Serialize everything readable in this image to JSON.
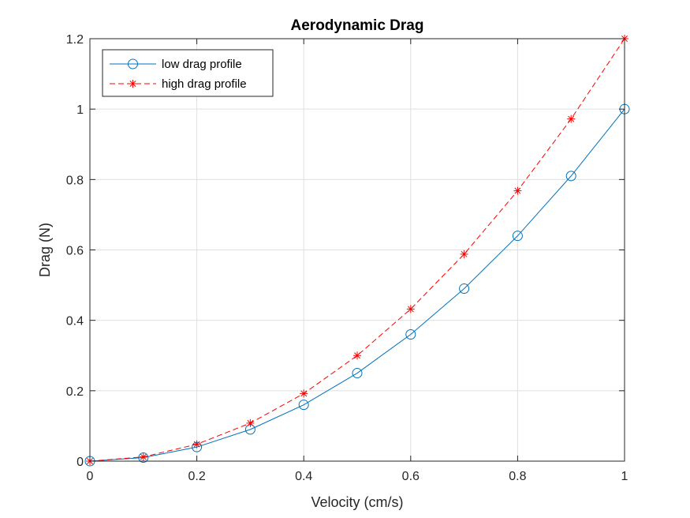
{
  "chart_data": {
    "type": "line",
    "title": "Aerodynamic Drag",
    "xlabel": "Velocity (cm/s)",
    "ylabel": "Drag (N)",
    "xlim": [
      0,
      1
    ],
    "ylim": [
      0,
      1.2
    ],
    "xticks": [
      0,
      0.2,
      0.4,
      0.6,
      0.8,
      1
    ],
    "xtick_labels": [
      "0",
      "0.2",
      "0.4",
      "0.6",
      "0.8",
      "1"
    ],
    "yticks": [
      0,
      0.2,
      0.4,
      0.6,
      0.8,
      1,
      1.2
    ],
    "ytick_labels": [
      "0",
      "0.2",
      "0.4",
      "0.6",
      "0.8",
      "1",
      "1.2"
    ],
    "grid": true,
    "legend_position": "top-left",
    "x": [
      0,
      0.1,
      0.2,
      0.3,
      0.4,
      0.5,
      0.6,
      0.7,
      0.8,
      0.9,
      1.0
    ],
    "series": [
      {
        "name": "low drag profile",
        "values": [
          0,
          0.01,
          0.04,
          0.09,
          0.16,
          0.25,
          0.36,
          0.49,
          0.64,
          0.81,
          1.0
        ],
        "color": "#0072bd",
        "line_style": "solid",
        "marker": "circle"
      },
      {
        "name": "high drag profile",
        "values": [
          0,
          0.012,
          0.048,
          0.108,
          0.192,
          0.3,
          0.432,
          0.588,
          0.768,
          0.972,
          1.2
        ],
        "color": "#ff0000",
        "line_style": "dashed",
        "marker": "asterisk"
      }
    ]
  }
}
